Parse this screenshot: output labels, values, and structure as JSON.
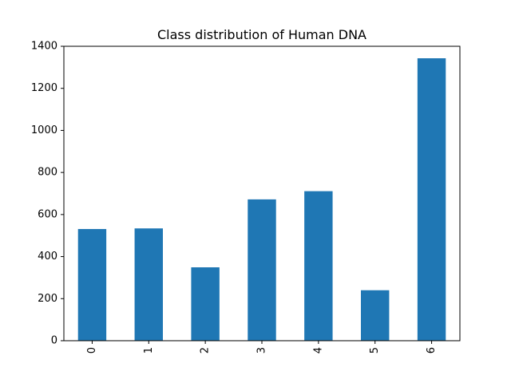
{
  "chart_data": {
    "type": "bar",
    "title": "Class distribution of Human DNA",
    "xlabel": "",
    "ylabel": "",
    "categories": [
      "0",
      "1",
      "2",
      "3",
      "4",
      "5",
      "6"
    ],
    "values": [
      531,
      534,
      349,
      672,
      711,
      240,
      1343
    ],
    "ylim": [
      0,
      1400
    ],
    "yticks": [
      0,
      200,
      400,
      600,
      800,
      1000,
      1200,
      1400
    ],
    "bar_color": "#1f77b4",
    "grid": false,
    "legend": "none"
  }
}
